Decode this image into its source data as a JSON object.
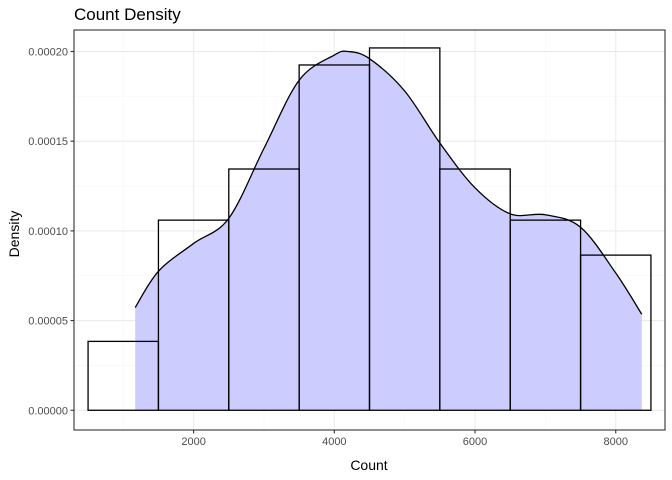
{
  "chart_data": {
    "type": "histogram-density",
    "title": "Count Density",
    "xlabel": "Count",
    "ylabel": "Density",
    "xlim": [
      300,
      8700
    ],
    "ylim": [
      -1.1e-05,
      0.000212
    ],
    "x_ticks": [
      2000,
      4000,
      6000,
      8000
    ],
    "x_tick_labels": [
      "2000",
      "4000",
      "6000",
      "8000"
    ],
    "y_ticks": [
      0,
      5e-05,
      0.0001,
      0.00015,
      0.0002
    ],
    "y_tick_labels": [
      "0.00000",
      "0.00005",
      "0.00010",
      "0.00015",
      "0.00020"
    ],
    "grid": true,
    "histogram": {
      "bin_width": 1000,
      "bins": [
        {
          "start": 500,
          "end": 1500,
          "density": 3.84e-05
        },
        {
          "start": 1500,
          "end": 2500,
          "density": 0.000106
        },
        {
          "start": 2500,
          "end": 3500,
          "density": 0.0001345
        },
        {
          "start": 3500,
          "end": 4500,
          "density": 0.0001925
        },
        {
          "start": 4500,
          "end": 5500,
          "density": 0.000202
        },
        {
          "start": 5500,
          "end": 6500,
          "density": 0.0001345
        },
        {
          "start": 6500,
          "end": 7500,
          "density": 0.000106
        },
        {
          "start": 7500,
          "end": 8500,
          "density": 8.65e-05
        }
      ]
    },
    "density": {
      "x": [
        1170,
        1500,
        2000,
        2500,
        3000,
        3500,
        4000,
        4200,
        4500,
        5000,
        5500,
        6000,
        6500,
        7000,
        7500,
        8000,
        8370
      ],
      "y": [
        5.73e-05,
        7.75e-05,
        9.3e-05,
        0.000107,
        0.000146,
        0.000184,
        0.000198,
        0.0002,
        0.000196,
        0.000178,
        0.000149,
        0.000124,
        0.0001095,
        0.000109,
        0.000102,
        7.65e-05,
        5.35e-05
      ]
    },
    "colors": {
      "density_fill": "#ccccff",
      "outline": "#000000",
      "grid_major": "#ebebeb",
      "grid_minor": "#f5f5f5",
      "panel_border": "#333333",
      "tick_text": "#4d4d4d"
    }
  }
}
